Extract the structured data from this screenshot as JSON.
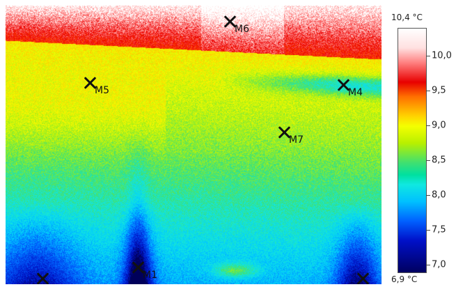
{
  "markers": [
    {
      "id": "m6",
      "label": "M6"
    },
    {
      "id": "m5",
      "label": "M5"
    },
    {
      "id": "m4",
      "label": "M4"
    },
    {
      "id": "m7",
      "label": "M7"
    },
    {
      "id": "m1",
      "label": "M1"
    },
    {
      "id": "m2",
      "label": ""
    },
    {
      "id": "m3",
      "label": ""
    }
  ],
  "scale": {
    "max_label": "10,4 °C",
    "min_label": "6,9 °C",
    "ticks": [
      "10,0",
      "9,5",
      "9,0",
      "8,5",
      "8,0",
      "7,5",
      "7,0"
    ],
    "tick_values": [
      10.0,
      9.5,
      9.0,
      8.5,
      8.0,
      7.5,
      7.0
    ],
    "min": 6.9,
    "max": 10.4
  }
}
